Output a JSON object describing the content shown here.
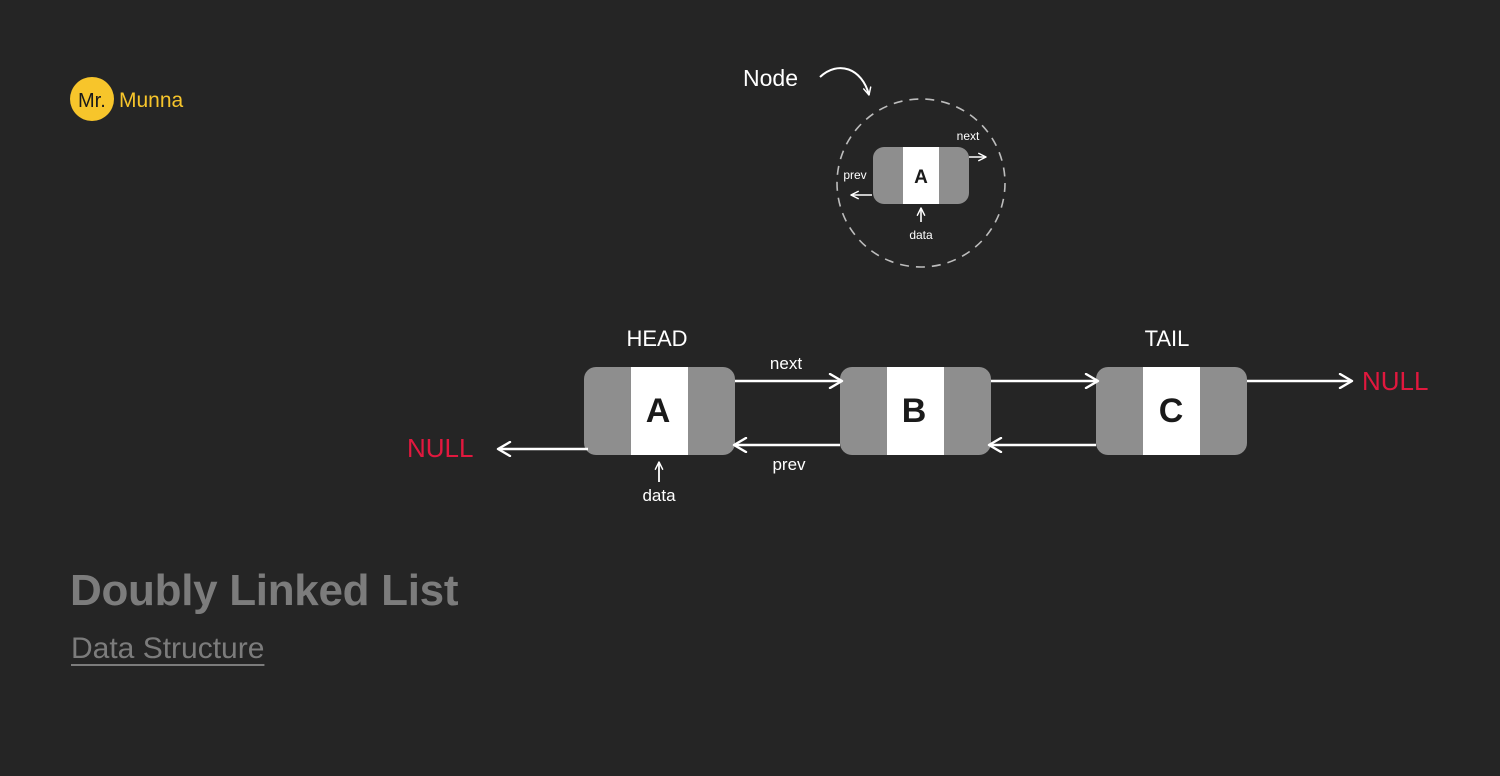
{
  "brand": {
    "logo_badge": "Mr.",
    "logo_name": "Munna",
    "accent": "#f7c52b"
  },
  "legend_node": {
    "caption": "Node",
    "letter": "A",
    "next_label": "next",
    "prev_label": "prev",
    "data_label": "data"
  },
  "list": {
    "head_label": "HEAD",
    "tail_label": "TAIL",
    "nodes": [
      {
        "letter": "A"
      },
      {
        "letter": "B"
      },
      {
        "letter": "C"
      }
    ],
    "next_label": "next",
    "prev_label": "prev",
    "data_label": "data",
    "null_left": "NULL",
    "null_right": "NULL",
    "null_color": "#e1183e"
  },
  "title": "Doubly Linked List",
  "subtitle": "Data Structure",
  "colors": {
    "background": "#252525",
    "node_grey": "#8e8e8e",
    "node_center": "#ffffff",
    "text_muted": "#7c7c7c"
  }
}
